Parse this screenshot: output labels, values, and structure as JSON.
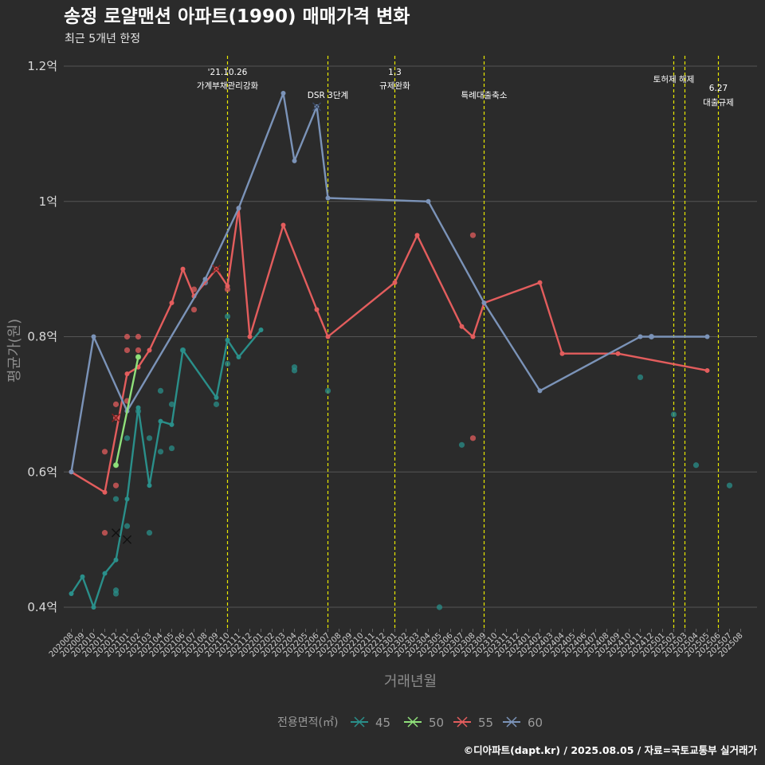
{
  "title": "송정 로얄맨션 아파트(1990) 매매가격 변화",
  "subtitle": "최근 5개년 한정",
  "caption": "©디아파트(dapt.kr) / 2025.08.05 / 자료=국토교통부 실거래가",
  "colors": {
    "background": "#2b2b2b",
    "grid": "#555555",
    "event_line": "#e8e800",
    "series": {
      "45": "#2a8f8a",
      "50": "#8fe07a",
      "55": "#e35d5d",
      "60": "#7b93b8"
    }
  },
  "chart_data": {
    "type": "line",
    "xlabel": "거래년월",
    "ylabel": "평균가(원)",
    "x_range": [
      "202008",
      "202508"
    ],
    "ylim": [
      36000000,
      123000000
    ],
    "yticks": [
      {
        "value": 40000000,
        "label": "0.4억"
      },
      {
        "value": 60000000,
        "label": "0.6억"
      },
      {
        "value": 80000000,
        "label": "0.8억"
      },
      {
        "value": 100000000,
        "label": "1억"
      },
      {
        "value": 120000000,
        "label": "1.2억"
      }
    ],
    "xticks": [
      "202008",
      "202009",
      "202010",
      "202011",
      "202012",
      "202101",
      "202102",
      "202103",
      "202104",
      "202105",
      "202106",
      "202107",
      "202108",
      "202109",
      "202110",
      "202111",
      "202112",
      "202201",
      "202202",
      "202203",
      "202204",
      "202205",
      "202206",
      "202207",
      "202208",
      "202209",
      "202210",
      "202211",
      "202212",
      "202301",
      "202302",
      "202303",
      "202304",
      "202305",
      "202306",
      "202307",
      "202308",
      "202309",
      "202310",
      "202311",
      "202312",
      "202401",
      "202402",
      "202403",
      "202404",
      "202405",
      "202406",
      "202407",
      "202408",
      "202409",
      "202410",
      "202411",
      "202412",
      "202501",
      "202502",
      "202503",
      "202504",
      "202505",
      "202506",
      "202507",
      "202508"
    ],
    "events": [
      {
        "x": "202110",
        "date": "'21.10.26",
        "text": "가계부채관리강화"
      },
      {
        "x": "202207",
        "date": "",
        "text": "DSR 3단계"
      },
      {
        "x": "202301",
        "date": "1.3",
        "text": "규제완화"
      },
      {
        "x": "202309",
        "date": "",
        "text": "특례대출축소"
      },
      {
        "x": "202502",
        "date": "",
        "text": "토허제 해제"
      },
      {
        "x": "202503",
        "date": "",
        "text": ""
      },
      {
        "x": "202506",
        "date": "6.27",
        "text": "대출규제"
      }
    ],
    "legend_title": "전용면적(㎡)",
    "legend_position": "bottom",
    "series": [
      {
        "name": "45",
        "line": [
          [
            "202008",
            42000000
          ],
          [
            "202009",
            44500000
          ],
          [
            "202010",
            40000000
          ],
          [
            "202011",
            45000000
          ],
          [
            "202012",
            47000000
          ],
          [
            "202101",
            56000000
          ],
          [
            "202102",
            69500000
          ],
          [
            "202103",
            58000000
          ],
          [
            "202104",
            67500000
          ],
          [
            "202105",
            67000000
          ],
          [
            "202106",
            78000000
          ],
          [
            "202109",
            71000000
          ],
          [
            "202110",
            79500000
          ],
          [
            "202111",
            77000000
          ],
          [
            "202201",
            81000000
          ]
        ],
        "points": [
          [
            "202012",
            56000000
          ],
          [
            "202012",
            42500000
          ],
          [
            "202012",
            42000000
          ],
          [
            "202101",
            65000000
          ],
          [
            "202101",
            52000000
          ],
          [
            "202102",
            69000000
          ],
          [
            "202103",
            51000000
          ],
          [
            "202103",
            65000000
          ],
          [
            "202104",
            72000000
          ],
          [
            "202104",
            63000000
          ],
          [
            "202105",
            63500000
          ],
          [
            "202105",
            70000000
          ],
          [
            "202106",
            78000000
          ],
          [
            "202109",
            70000000
          ],
          [
            "202110",
            83000000
          ],
          [
            "202110",
            76000000
          ],
          [
            "202204",
            75500000
          ],
          [
            "202204",
            75000000
          ],
          [
            "202207",
            72000000
          ],
          [
            "202305",
            40000000
          ],
          [
            "202307",
            64000000
          ],
          [
            "202411",
            74000000
          ],
          [
            "202502",
            68500000
          ],
          [
            "202504",
            61000000
          ],
          [
            "202507",
            58000000
          ]
        ],
        "crosses": [
          [
            "202012",
            51000000
          ],
          [
            "202101",
            50000000
          ]
        ]
      },
      {
        "name": "50",
        "line": [
          [
            "202012",
            61000000
          ],
          [
            "202102",
            77000000
          ]
        ],
        "points": [
          [
            "202102",
            77000000
          ],
          [
            "202012",
            61000000
          ]
        ],
        "crosses": []
      },
      {
        "name": "55",
        "line": [
          [
            "202008",
            60000000
          ],
          [
            "202011",
            57000000
          ],
          [
            "202101",
            74500000
          ],
          [
            "202102",
            75500000
          ],
          [
            "202103",
            78000000
          ],
          [
            "202105",
            85000000
          ],
          [
            "202106",
            90000000
          ],
          [
            "202107",
            86000000
          ],
          [
            "202109",
            90000000
          ],
          [
            "202110",
            87500000
          ],
          [
            "202111",
            99000000
          ],
          [
            "202112",
            80000000
          ],
          [
            "202203",
            96500000
          ],
          [
            "202206",
            84000000
          ],
          [
            "202207",
            80000000
          ],
          [
            "202301",
            88000000
          ],
          [
            "202303",
            95000000
          ],
          [
            "202307",
            81500000
          ],
          [
            "202308",
            80000000
          ],
          [
            "202309",
            85000000
          ],
          [
            "202402",
            88000000
          ],
          [
            "202404",
            77500000
          ],
          [
            "202409",
            77500000
          ],
          [
            "202505",
            75000000
          ]
        ],
        "points": [
          [
            "202011",
            63000000
          ],
          [
            "202011",
            51000000
          ],
          [
            "202012",
            70000000
          ],
          [
            "202012",
            68000000
          ],
          [
            "202012",
            58000000
          ],
          [
            "202101",
            80000000
          ],
          [
            "202101",
            78000000
          ],
          [
            "202101",
            70500000
          ],
          [
            "202102",
            80000000
          ],
          [
            "202102",
            78000000
          ],
          [
            "202107",
            84000000
          ],
          [
            "202107",
            87000000
          ],
          [
            "202110",
            87000000
          ],
          [
            "202308",
            95000000
          ],
          [
            "202308",
            65000000
          ]
        ],
        "crosses": [
          [
            "202012",
            68000000
          ],
          [
            "202109",
            90000000
          ]
        ]
      },
      {
        "name": "60",
        "line": [
          [
            "202008",
            60000000
          ],
          [
            "202010",
            80000000
          ],
          [
            "202101",
            69000000
          ],
          [
            "202108",
            88500000
          ],
          [
            "202111",
            99000000
          ],
          [
            "202203",
            116000000
          ],
          [
            "202204",
            106000000
          ],
          [
            "202206",
            114000000
          ],
          [
            "202207",
            100500000
          ],
          [
            "202304",
            100000000
          ],
          [
            "202309",
            85000000
          ],
          [
            "202402",
            72000000
          ],
          [
            "202411",
            80000000
          ],
          [
            "202412",
            80000000
          ],
          [
            "202505",
            80000000
          ]
        ],
        "points": [
          [
            "202108",
            88000000
          ],
          [
            "202412",
            80000000
          ]
        ],
        "crosses": [
          [
            "202206",
            114000000
          ]
        ]
      }
    ]
  }
}
